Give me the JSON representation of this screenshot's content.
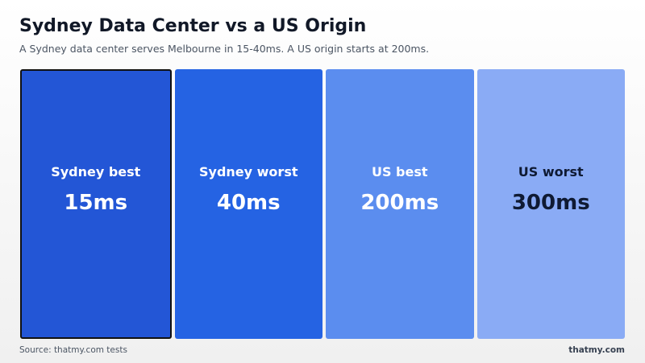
{
  "header": {
    "title": "Sydney Data Center vs a US Origin",
    "subtitle": "A Sydney data center serves Melbourne in 15-40ms. A US origin starts at 200ms."
  },
  "cards": [
    {
      "label": "Sydney best",
      "value": "15ms"
    },
    {
      "label": "Sydney worst",
      "value": "40ms"
    },
    {
      "label": "US best",
      "value": "200ms"
    },
    {
      "label": "US worst",
      "value": "300ms"
    }
  ],
  "footer": {
    "source": "Source: thatmy.com tests",
    "brand": "thatmy.com"
  }
}
